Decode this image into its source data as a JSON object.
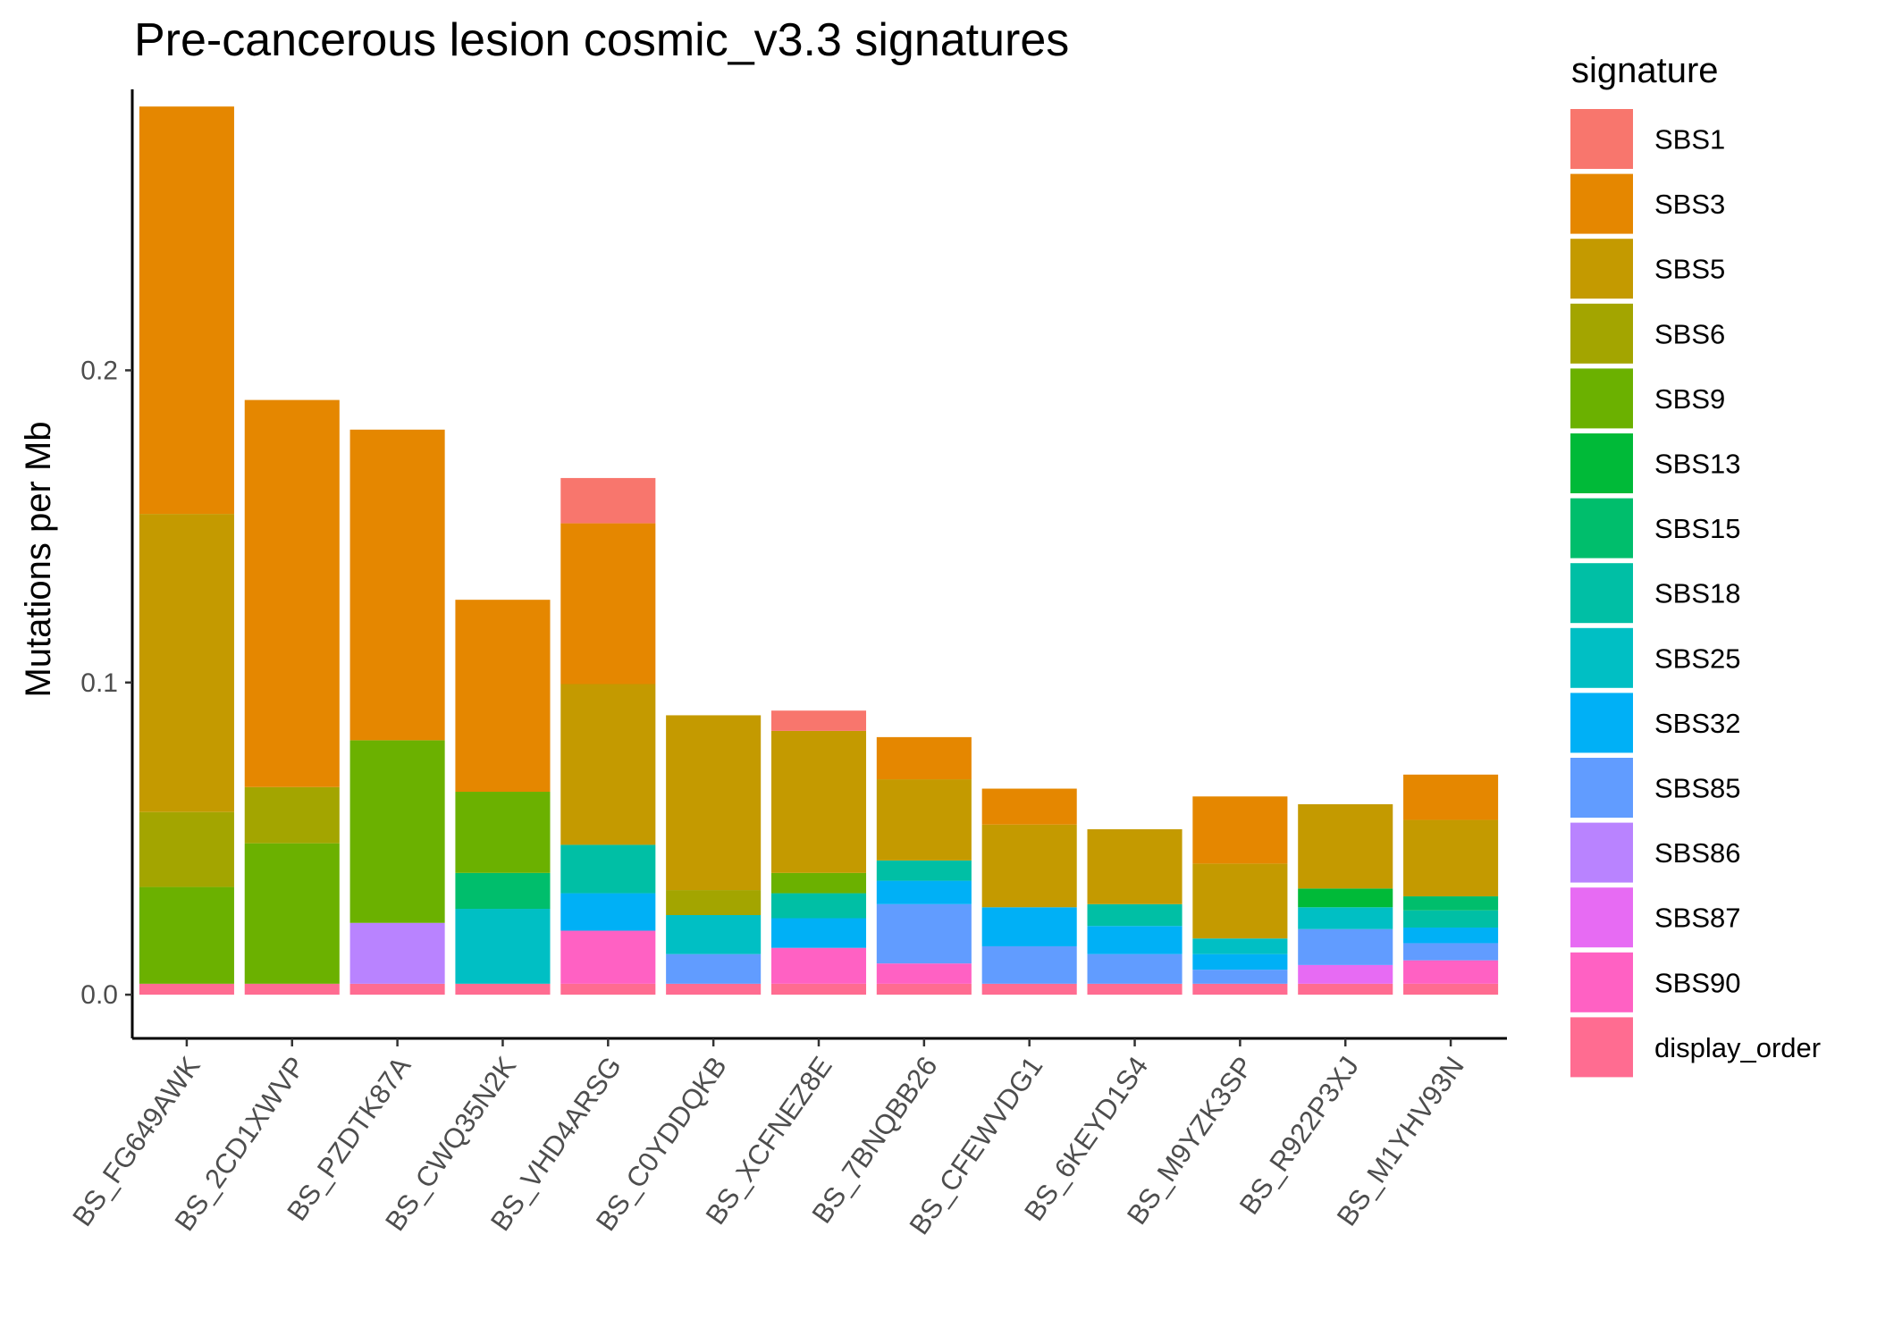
{
  "chart_data": {
    "type": "bar",
    "stacked": true,
    "title": "Pre-cancerous lesion cosmic_v3.3 signatures",
    "xlabel": "",
    "ylabel": "Mutations per Mb",
    "ylim": [
      -0.014,
      0.29
    ],
    "yticks": [
      0.0,
      0.1,
      0.2
    ],
    "ytick_labels": [
      "0.0",
      "0.1",
      "0.2"
    ],
    "grid": false,
    "legend_position": "right",
    "legend_title": "signature",
    "categories": [
      "BS_FG649AWK",
      "BS_2CD1XWVP",
      "BS_PZDTK87A",
      "BS_CWQ35N2K",
      "BS_VHD4ARSG",
      "BS_C0YDDQKB",
      "BS_XCFNEZ8E",
      "BS_7BNQBB26",
      "BS_CFEWVDG1",
      "BS_6KEYD1S4",
      "BS_M9YZK3SP",
      "BS_R922P3XJ",
      "BS_M1YHV93N"
    ],
    "series": [
      {
        "name": "display_order",
        "color": "#FF6C91",
        "values": [
          0.0035,
          0.0035,
          0.0035,
          0.0035,
          0.0035,
          0.0035,
          0.0035,
          0.0035,
          0.0035,
          0.0035,
          0.0035,
          0.0035,
          0.0035
        ]
      },
      {
        "name": "SBS90",
        "color": "#FF61C3",
        "values": [
          0,
          0,
          0,
          0,
          0.017,
          0,
          0.0115,
          0.0065,
          0,
          0,
          0,
          0,
          0.0075
        ]
      },
      {
        "name": "SBS87",
        "color": "#E76BF3",
        "values": [
          0,
          0,
          0,
          0,
          0,
          0,
          0,
          0,
          0,
          0,
          0,
          0.006,
          0
        ]
      },
      {
        "name": "SBS86",
        "color": "#B983FF",
        "values": [
          0,
          0,
          0.0195,
          0,
          0,
          0,
          0,
          0,
          0,
          0,
          0,
          0,
          0
        ]
      },
      {
        "name": "SBS85",
        "color": "#619CFF",
        "values": [
          0,
          0,
          0,
          0,
          0,
          0.0095,
          0,
          0.019,
          0.012,
          0.0095,
          0.0045,
          0.0115,
          0.0055
        ]
      },
      {
        "name": "SBS32",
        "color": "#00B0F6",
        "values": [
          0,
          0,
          0,
          0,
          0.012,
          0,
          0.0095,
          0.0075,
          0.0125,
          0.009,
          0.005,
          0,
          0.005
        ]
      },
      {
        "name": "SBS25",
        "color": "#00BFC4",
        "values": [
          0,
          0,
          0,
          0.024,
          0,
          0.0125,
          0,
          0,
          0,
          0,
          0.005,
          0.007,
          0
        ]
      },
      {
        "name": "SBS18",
        "color": "#00BFA5",
        "values": [
          0,
          0,
          0,
          0,
          0.0155,
          0,
          0.008,
          0.0065,
          0,
          0.007,
          0,
          0,
          0.0055
        ]
      },
      {
        "name": "SBS15",
        "color": "#00BE6C",
        "values": [
          0,
          0,
          0,
          0.0115,
          0,
          0,
          0,
          0,
          0,
          0,
          0,
          0,
          0.0045
        ]
      },
      {
        "name": "SBS13",
        "color": "#00BA38",
        "values": [
          0,
          0,
          0,
          0,
          0,
          0,
          0,
          0,
          0,
          0,
          0,
          0.006,
          0
        ]
      },
      {
        "name": "SBS9",
        "color": "#6BB100",
        "values": [
          0.031,
          0.045,
          0.0585,
          0.026,
          0,
          0,
          0.0065,
          0,
          0,
          0,
          0,
          0,
          0
        ]
      },
      {
        "name": "SBS6",
        "color": "#A3A500",
        "values": [
          0.024,
          0.018,
          0,
          0,
          0,
          0.008,
          0,
          0,
          0,
          0,
          0,
          0,
          0
        ]
      },
      {
        "name": "SBS5",
        "color": "#C49A00",
        "values": [
          0.0955,
          0,
          0,
          0,
          0.0515,
          0.056,
          0.0455,
          0.026,
          0.0265,
          0.024,
          0.024,
          0.027,
          0.0245
        ]
      },
      {
        "name": "SBS3",
        "color": "#E58700",
        "values": [
          0.1305,
          0.124,
          0.0995,
          0.0615,
          0.0515,
          0,
          0,
          0.0135,
          0.0115,
          0,
          0.0215,
          0,
          0.0145
        ]
      },
      {
        "name": "SBS1",
        "color": "#F8766D",
        "values": [
          0,
          0,
          0,
          0,
          0.0145,
          0,
          0.0065,
          0,
          0,
          0,
          0,
          0,
          0
        ]
      }
    ],
    "legend_order": [
      "SBS1",
      "SBS3",
      "SBS5",
      "SBS6",
      "SBS9",
      "SBS13",
      "SBS15",
      "SBS18",
      "SBS25",
      "SBS32",
      "SBS85",
      "SBS86",
      "SBS87",
      "SBS90",
      "display_order"
    ]
  }
}
